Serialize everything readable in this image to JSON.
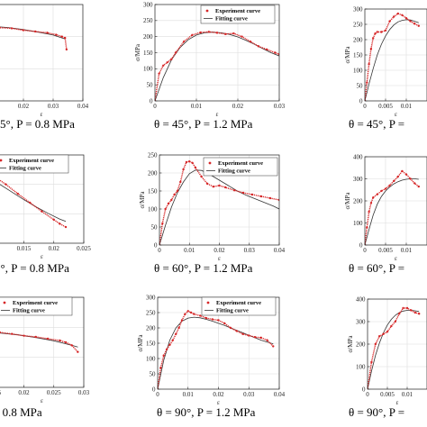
{
  "legend": {
    "experiment": "Experiment curve",
    "fitting": "Fitting curve"
  },
  "colors": {
    "experiment": "#d62728",
    "fitting": "#333333",
    "grid": "#dddddd"
  },
  "chart_data": [
    {
      "type": "line",
      "caption": "5°, P = 0.8 MPa",
      "xlabel": "ε",
      "ylabel": "",
      "xlim": [
        0,
        0.04
      ],
      "ylim": [
        0,
        300
      ],
      "xticks": [
        0.02,
        0.03,
        0.04
      ],
      "xtick_labels": [
        "0.02",
        "0.03",
        "0.04"
      ],
      "yticks": [],
      "ytick_labels": [],
      "series": [
        {
          "name": "Experiment curve",
          "x": [
            0,
            0.004,
            0.008,
            0.012,
            0.016,
            0.02,
            0.024,
            0.028,
            0.031,
            0.033,
            0.034,
            0.0345
          ],
          "y": [
            232,
            233,
            234,
            228,
            226,
            220,
            216,
            212,
            206,
            200,
            196,
            160
          ]
        },
        {
          "name": "Fitting curve",
          "x": [
            0,
            0.005,
            0.01,
            0.015,
            0.02,
            0.025,
            0.03,
            0.034
          ],
          "y": [
            236,
            235,
            232,
            228,
            222,
            214,
            205,
            193
          ]
        }
      ]
    },
    {
      "type": "line",
      "caption": "θ = 45°, P = 1.2 MPa",
      "xlabel": "ε",
      "ylabel": "σ/MPa",
      "xlim": [
        0,
        0.03
      ],
      "ylim": [
        0,
        300
      ],
      "xticks": [
        0,
        0.01,
        0.02,
        0.03
      ],
      "xtick_labels": [
        "0",
        "0.01",
        "0.02",
        "0.03"
      ],
      "yticks": [
        0,
        50,
        100,
        150,
        200,
        250,
        300
      ],
      "ytick_labels": [
        "0",
        "50",
        "100",
        "150",
        "200",
        "250",
        "300"
      ],
      "series": [
        {
          "name": "Experiment curve",
          "x": [
            0,
            0.001,
            0.002,
            0.003,
            0.004,
            0.005,
            0.007,
            0.009,
            0.011,
            0.013,
            0.015,
            0.017,
            0.019,
            0.021,
            0.023,
            0.025,
            0.027,
            0.029,
            0.03
          ],
          "y": [
            0,
            85,
            110,
            120,
            130,
            150,
            185,
            205,
            213,
            215,
            212,
            208,
            210,
            200,
            185,
            170,
            160,
            150,
            145
          ]
        },
        {
          "name": "Fitting curve",
          "x": [
            0,
            0.002,
            0.004,
            0.006,
            0.008,
            0.01,
            0.012,
            0.014,
            0.016,
            0.018,
            0.02,
            0.022,
            0.024,
            0.026,
            0.028,
            0.03
          ],
          "y": [
            0,
            72,
            128,
            165,
            190,
            205,
            212,
            214,
            212,
            207,
            199,
            188,
            176,
            163,
            150,
            140
          ]
        }
      ]
    },
    {
      "type": "line",
      "caption": "θ = 45°, P =",
      "xlabel": "ε",
      "ylabel": "σ/MPa",
      "xlim": [
        0,
        0.015
      ],
      "ylim": [
        0,
        300
      ],
      "xticks": [
        0,
        0.005,
        0.01
      ],
      "xtick_labels": [
        "0",
        "0.005",
        "0.01"
      ],
      "yticks": [
        0,
        50,
        100,
        150,
        200,
        250,
        300
      ],
      "ytick_labels": [
        "0",
        "50",
        "100",
        "150",
        "200",
        "250",
        "300"
      ],
      "series": [
        {
          "name": "Experiment curve",
          "x": [
            0,
            0.0005,
            0.001,
            0.0015,
            0.002,
            0.0025,
            0.003,
            0.004,
            0.005,
            0.006,
            0.007,
            0.008,
            0.009,
            0.01,
            0.011,
            0.012,
            0.013
          ],
          "y": [
            0,
            60,
            120,
            170,
            205,
            220,
            225,
            225,
            230,
            260,
            275,
            285,
            280,
            270,
            260,
            252,
            245
          ]
        },
        {
          "name": "Fitting curve",
          "x": [
            0,
            0.001,
            0.002,
            0.003,
            0.004,
            0.005,
            0.006,
            0.007,
            0.008,
            0.009,
            0.01,
            0.011,
            0.012,
            0.013
          ],
          "y": [
            0,
            55,
            105,
            150,
            185,
            212,
            233,
            248,
            258,
            263,
            265,
            264,
            260,
            255
          ]
        }
      ]
    },
    {
      "type": "line",
      "caption": "0°, P = 0.8 MPa",
      "xlabel": "ε",
      "ylabel": "",
      "xlim": [
        0.005,
        0.025
      ],
      "ylim": [
        0,
        300
      ],
      "xticks": [
        0.01,
        0.015,
        0.02,
        0.025
      ],
      "xtick_labels": [
        "0.01",
        "0.015",
        "0.02",
        "0.025"
      ],
      "yticks": [],
      "ytick_labels": [],
      "series": [
        {
          "name": "Experiment curve",
          "x": [
            0.005,
            0.006,
            0.007,
            0.008,
            0.01,
            0.012,
            0.014,
            0.016,
            0.018,
            0.02,
            0.021,
            0.022
          ],
          "y": [
            272,
            275,
            268,
            252,
            228,
            200,
            168,
            138,
            108,
            80,
            66,
            55
          ]
        },
        {
          "name": "Fitting curve",
          "x": [
            0.005,
            0.007,
            0.009,
            0.011,
            0.013,
            0.015,
            0.017,
            0.019,
            0.021,
            0.022
          ],
          "y": [
            270,
            250,
            226,
            200,
            174,
            148,
            124,
            102,
            82,
            74
          ]
        }
      ]
    },
    {
      "type": "line",
      "caption": "θ = 60°, P = 1.2 MPa",
      "xlabel": "ε",
      "ylabel": "σ/MPa",
      "xlim": [
        0,
        0.04
      ],
      "ylim": [
        0,
        250
      ],
      "xticks": [
        0,
        0.01,
        0.02,
        0.03,
        0.04
      ],
      "xtick_labels": [
        "0",
        "0.01",
        "0.02",
        "0.03",
        "0.04"
      ],
      "yticks": [
        0,
        50,
        100,
        150,
        200,
        250
      ],
      "ytick_labels": [
        "0",
        "50",
        "100",
        "150",
        "200",
        "250"
      ],
      "series": [
        {
          "name": "Experiment curve",
          "x": [
            0,
            0.001,
            0.002,
            0.003,
            0.004,
            0.005,
            0.006,
            0.007,
            0.008,
            0.009,
            0.01,
            0.011,
            0.012,
            0.014,
            0.016,
            0.018,
            0.02,
            0.022,
            0.025,
            0.028,
            0.031,
            0.034,
            0.037,
            0.04
          ],
          "y": [
            0,
            60,
            100,
            115,
            125,
            140,
            150,
            175,
            210,
            230,
            232,
            228,
            215,
            190,
            170,
            162,
            165,
            160,
            152,
            145,
            140,
            135,
            130,
            125
          ]
        },
        {
          "name": "Fitting curve",
          "x": [
            0,
            0.002,
            0.004,
            0.006,
            0.008,
            0.01,
            0.012,
            0.014,
            0.016,
            0.018,
            0.02,
            0.023,
            0.026,
            0.029,
            0.032,
            0.035,
            0.038,
            0.04
          ],
          "y": [
            0,
            55,
            105,
            145,
            175,
            198,
            208,
            207,
            200,
            190,
            180,
            165,
            150,
            138,
            128,
            118,
            108,
            100
          ]
        }
      ]
    },
    {
      "type": "line",
      "caption": "θ = 60°, P =",
      "xlabel": "ε",
      "ylabel": "σ/MPa",
      "xlim": [
        0,
        0.015
      ],
      "ylim": [
        0,
        400
      ],
      "xticks": [
        0,
        0.005,
        0.01
      ],
      "xtick_labels": [
        "0",
        "0.005",
        "0.01"
      ],
      "yticks": [
        0,
        100,
        200,
        300,
        400
      ],
      "ytick_labels": [
        "0",
        "100",
        "200",
        "300",
        "400"
      ],
      "series": [
        {
          "name": "Experiment curve",
          "x": [
            0,
            0.0005,
            0.001,
            0.0015,
            0.002,
            0.003,
            0.004,
            0.005,
            0.006,
            0.007,
            0.008,
            0.009,
            0.01,
            0.011,
            0.012,
            0.013
          ],
          "y": [
            0,
            80,
            150,
            190,
            215,
            230,
            245,
            255,
            270,
            290,
            310,
            335,
            320,
            300,
            280,
            265
          ]
        },
        {
          "name": "Fitting curve",
          "x": [
            0,
            0.001,
            0.002,
            0.003,
            0.004,
            0.005,
            0.006,
            0.007,
            0.008,
            0.009,
            0.01,
            0.011,
            0.012,
            0.013
          ],
          "y": [
            0,
            70,
            135,
            185,
            220,
            245,
            263,
            277,
            287,
            294,
            298,
            300,
            300,
            298
          ]
        }
      ]
    },
    {
      "type": "line",
      "caption": "= 0.8 MPa",
      "xlabel": "ε",
      "ylabel": "",
      "xlim": [
        0.01,
        0.03
      ],
      "ylim": [
        0,
        300
      ],
      "xticks": [
        0.015,
        0.02,
        0.025,
        0.03
      ],
      "xtick_labels": [
        "0.015",
        "0.02",
        "0.025",
        "0.03"
      ],
      "yticks": [],
      "ytick_labels": [],
      "series": [
        {
          "name": "Experiment curve",
          "x": [
            0.01,
            0.012,
            0.014,
            0.016,
            0.018,
            0.02,
            0.022,
            0.024,
            0.026,
            0.027,
            0.028,
            0.029
          ],
          "y": [
            192,
            192,
            186,
            183,
            178,
            172,
            168,
            162,
            156,
            150,
            140,
            118
          ]
        },
        {
          "name": "Fitting curve",
          "x": [
            0.01,
            0.013,
            0.016,
            0.019,
            0.022,
            0.025,
            0.028,
            0.029
          ],
          "y": [
            188,
            186,
            181,
            175,
            166,
            155,
            140,
            134
          ]
        }
      ]
    },
    {
      "type": "line",
      "caption": "θ = 90°, P = 1.2 MPa",
      "xlabel": "ε",
      "ylabel": "σ/MPa",
      "xlim": [
        0,
        0.04
      ],
      "ylim": [
        0,
        300
      ],
      "xticks": [
        0,
        0.01,
        0.02,
        0.03,
        0.04
      ],
      "xtick_labels": [
        "0",
        "0.01",
        "0.02",
        "0.03",
        "0.04"
      ],
      "yticks": [
        0,
        50,
        100,
        150,
        200,
        250,
        300
      ],
      "ytick_labels": [
        "0",
        "50",
        "100",
        "150",
        "200",
        "250",
        "300"
      ],
      "series": [
        {
          "name": "Experiment curve",
          "x": [
            0,
            0.001,
            0.002,
            0.003,
            0.004,
            0.005,
            0.006,
            0.007,
            0.008,
            0.009,
            0.01,
            0.011,
            0.012,
            0.014,
            0.016,
            0.018,
            0.02,
            0.022,
            0.024,
            0.026,
            0.028,
            0.03,
            0.032,
            0.034,
            0.036,
            0.038
          ],
          "y": [
            0,
            70,
            110,
            130,
            145,
            160,
            180,
            200,
            225,
            245,
            255,
            250,
            245,
            240,
            232,
            228,
            225,
            215,
            200,
            190,
            180,
            175,
            170,
            168,
            160,
            140
          ]
        },
        {
          "name": "Fitting curve",
          "x": [
            0,
            0.002,
            0.004,
            0.006,
            0.008,
            0.01,
            0.012,
            0.014,
            0.016,
            0.018,
            0.02,
            0.022,
            0.024,
            0.026,
            0.028,
            0.03,
            0.032,
            0.034,
            0.036,
            0.038
          ],
          "y": [
            0,
            95,
            160,
            200,
            222,
            232,
            235,
            233,
            228,
            222,
            215,
            208,
            200,
            192,
            184,
            176,
            168,
            160,
            154,
            148
          ]
        }
      ]
    },
    {
      "type": "line",
      "caption": "θ = 90°, P =",
      "xlabel": "ε",
      "ylabel": "σ/MPa",
      "xlim": [
        0,
        0.015
      ],
      "ylim": [
        0,
        400
      ],
      "xticks": [
        0,
        0.005,
        0.01
      ],
      "xtick_labels": [
        "0",
        "0.005",
        "0.01"
      ],
      "yticks": [
        0,
        100,
        200,
        300,
        400
      ],
      "ytick_labels": [
        "0",
        "100",
        "200",
        "300",
        "400"
      ],
      "series": [
        {
          "name": "Experiment curve",
          "x": [
            0,
            0.001,
            0.002,
            0.003,
            0.004,
            0.005,
            0.006,
            0.007,
            0.008,
            0.009,
            0.01,
            0.011,
            0.012,
            0.013
          ],
          "y": [
            0,
            120,
            200,
            235,
            245,
            255,
            280,
            300,
            335,
            360,
            360,
            350,
            340,
            335
          ]
        },
        {
          "name": "Fitting curve",
          "x": [
            0,
            0.001,
            0.002,
            0.003,
            0.004,
            0.005,
            0.006,
            0.007,
            0.008,
            0.009,
            0.01,
            0.011,
            0.012,
            0.013
          ],
          "y": [
            0,
            80,
            150,
            205,
            250,
            285,
            310,
            328,
            340,
            347,
            350,
            350,
            348,
            345
          ]
        }
      ]
    }
  ]
}
